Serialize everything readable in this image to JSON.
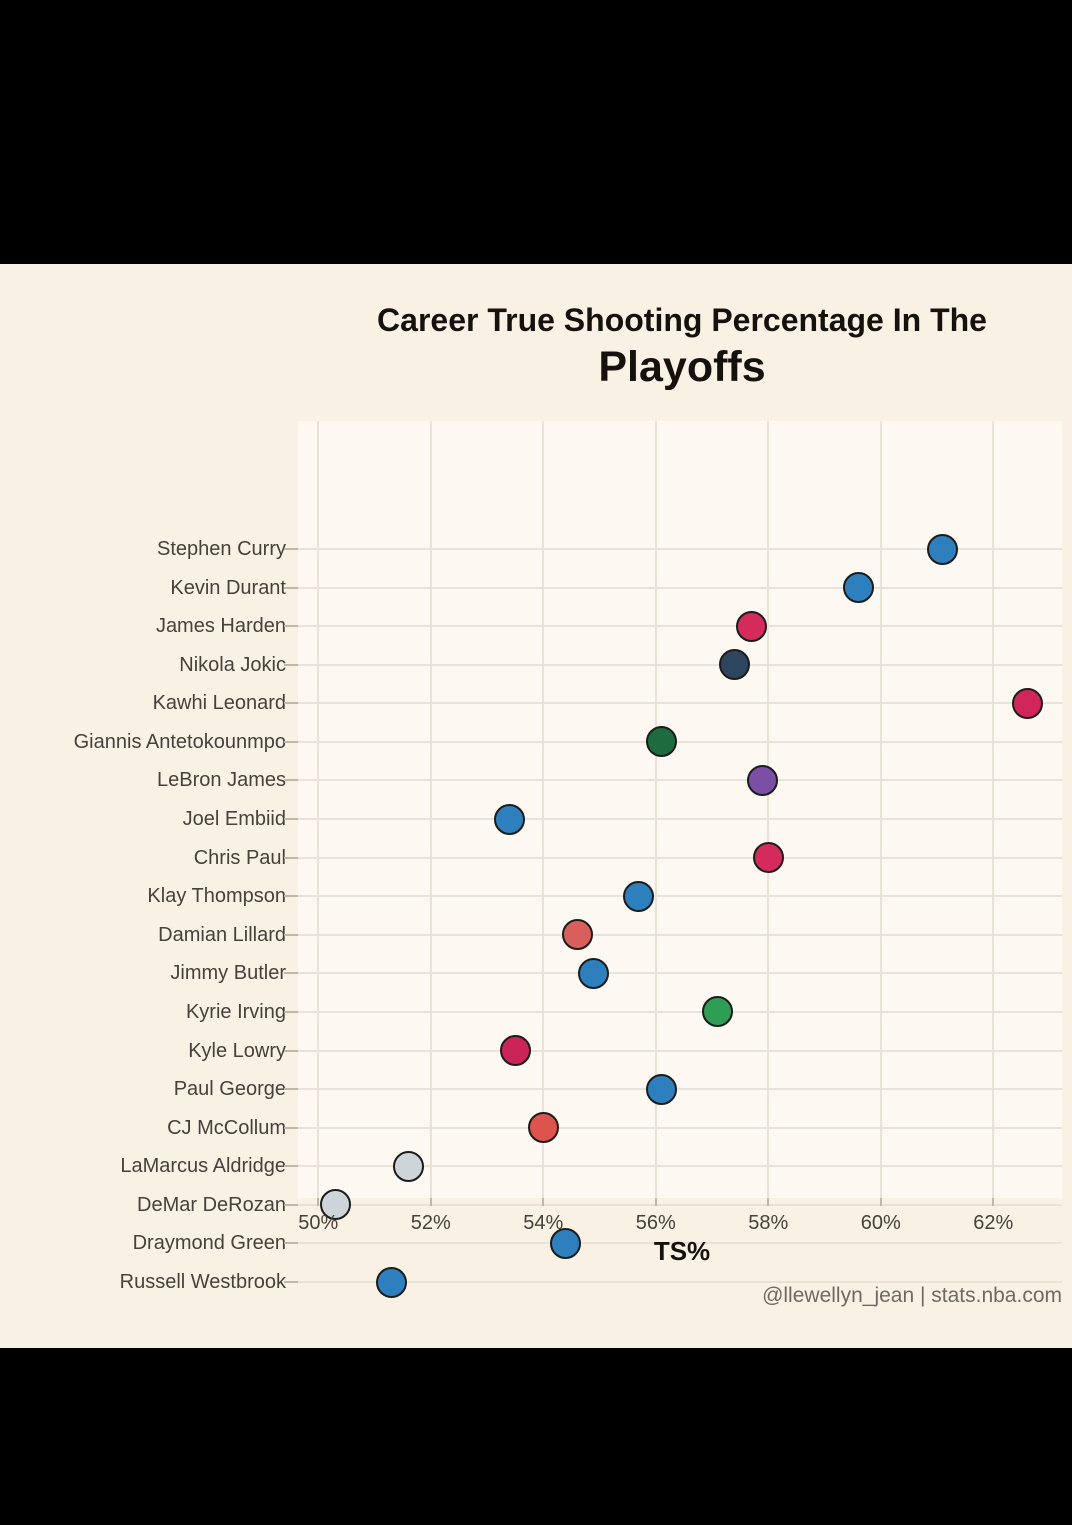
{
  "title": {
    "line1": "Career True Shooting Percentage In The",
    "line2": "Playoffs"
  },
  "credit": "@llewellyn_jean | stats.nba.com",
  "chart_data": {
    "type": "scatter",
    "title": "Career True Shooting Percentage In The Playoffs",
    "xlabel": "TS%",
    "ylabel": "",
    "x_tick_labels": [
      "50%",
      "52%",
      "54%",
      "56%",
      "58%",
      "60%",
      "62%"
    ],
    "x_tick_values": [
      50,
      52,
      54,
      56,
      58,
      60,
      62
    ],
    "xlim": [
      49.6,
      63.2
    ],
    "grid": true,
    "legend": "none",
    "point_stroke": "#1c1c1c",
    "players": [
      {
        "name": "Stephen Curry",
        "ts_pct": 61.1,
        "color": "#2d7fbe"
      },
      {
        "name": "Kevin Durant",
        "ts_pct": 59.6,
        "color": "#2d7fbe"
      },
      {
        "name": "James Harden",
        "ts_pct": 57.7,
        "color": "#d42a5c"
      },
      {
        "name": "Nikola Jokic",
        "ts_pct": 57.4,
        "color": "#2e4560"
      },
      {
        "name": "Kawhi Leonard",
        "ts_pct": 62.6,
        "color": "#d0265a"
      },
      {
        "name": "Giannis Antetokounmpo",
        "ts_pct": 56.1,
        "color": "#1d6b3e"
      },
      {
        "name": "LeBron James",
        "ts_pct": 57.9,
        "color": "#7b4fa6"
      },
      {
        "name": "Joel Embiid",
        "ts_pct": 53.4,
        "color": "#2d7fbe"
      },
      {
        "name": "Chris Paul",
        "ts_pct": 58.0,
        "color": "#d42a5c"
      },
      {
        "name": "Klay Thompson",
        "ts_pct": 55.7,
        "color": "#2d7fbe"
      },
      {
        "name": "Damian Lillard",
        "ts_pct": 54.6,
        "color": "#d95f5d"
      },
      {
        "name": "Jimmy Butler",
        "ts_pct": 54.9,
        "color": "#2d7fbe"
      },
      {
        "name": "Kyrie Irving",
        "ts_pct": 57.1,
        "color": "#2f9e55"
      },
      {
        "name": "Kyle Lowry",
        "ts_pct": 53.5,
        "color": "#cc2458"
      },
      {
        "name": "Paul George",
        "ts_pct": 56.1,
        "color": "#2d7fbe"
      },
      {
        "name": "CJ McCollum",
        "ts_pct": 54.0,
        "color": "#dd544f"
      },
      {
        "name": "LaMarcus Aldridge",
        "ts_pct": 51.6,
        "color": "#cdd5d8"
      },
      {
        "name": "DeMar DeRozan",
        "ts_pct": 50.3,
        "color": "#cdd5d8"
      },
      {
        "name": "Draymond Green",
        "ts_pct": 54.4,
        "color": "#2d7fbe"
      },
      {
        "name": "Russell Westbrook",
        "ts_pct": 51.3,
        "color": "#2d7fbe"
      }
    ]
  }
}
